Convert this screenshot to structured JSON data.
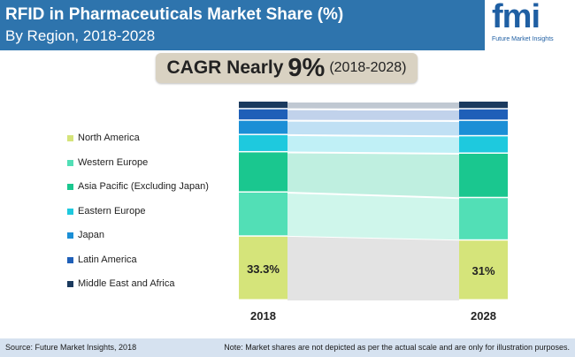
{
  "header": {
    "title": "RFID in Pharmaceuticals Market Share (%)",
    "subtitle": "By Region, 2018-2028",
    "logo_text": "fmi",
    "logo_subtitle": "Future Market Insights"
  },
  "cagr": {
    "prefix": "CAGR Nearly",
    "value": "9%",
    "period": "(2018-2028)"
  },
  "footer": {
    "source": "Source: Future Market Insights, 2018",
    "note": "Note: Market shares are not depicted as per the actual scale and are only for illustration purposes."
  },
  "chart_data": {
    "type": "bar",
    "stacked": true,
    "normalized_100": true,
    "categories": [
      "2018",
      "2028"
    ],
    "series": [
      {
        "name": "North America",
        "color": "#d5e47a",
        "values": [
          33.3,
          31.0
        ],
        "labels": [
          "33.3%",
          "31%"
        ]
      },
      {
        "name": "Western Europe",
        "color": "#52dfb6",
        "values": [
          23.0,
          22.0
        ]
      },
      {
        "name": "Asia Pacific (Excluding Japan)",
        "color": "#1ac78f",
        "values": [
          21.0,
          23.0
        ]
      },
      {
        "name": "Eastern Europe",
        "color": "#1ec9de",
        "values": [
          9.0,
          9.0
        ]
      },
      {
        "name": "Japan",
        "color": "#1b8fd6",
        "values": [
          7.5,
          8.0
        ]
      },
      {
        "name": "Latin America",
        "color": "#1f5fb8",
        "values": [
          6.0,
          6.0
        ]
      },
      {
        "name": "Middle East and Africa",
        "color": "#1b3a5e",
        "values": [
          4.0,
          4.0
        ]
      }
    ],
    "legend_position": "left",
    "grid": false
  }
}
